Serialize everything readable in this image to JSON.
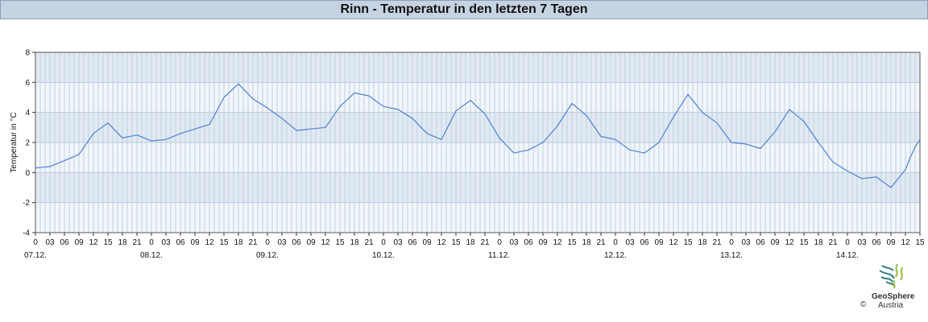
{
  "page": {
    "title": "Rinn - Temperatur in den letzten 7 Tagen"
  },
  "chart_data": {
    "type": "line",
    "title": "Rinn - Temperatur in den letzten 7 Tagen",
    "ylabel": "Temperatur in °C",
    "xlabel": "",
    "ylim": [
      -4,
      8
    ],
    "yticks": [
      -4,
      -2,
      0,
      2,
      4,
      6,
      8
    ],
    "xlim_hours": [
      0,
      183
    ],
    "hour_tick_labels": [
      "0",
      "03",
      "06",
      "09",
      "12",
      "15",
      "18",
      "21"
    ],
    "day_labels": [
      "07.12.",
      "08.12.",
      "09.12.",
      "10.12.",
      "11.12.",
      "12.12.",
      "13.12.",
      "14.12."
    ],
    "grid": true,
    "series": [
      {
        "color": "#4f7fd6",
        "x_hours": [
          0,
          3,
          6,
          9,
          12,
          15,
          18,
          21,
          24,
          27,
          30,
          33,
          36,
          39,
          42,
          45,
          48,
          51,
          54,
          57,
          60,
          63,
          66,
          69,
          72,
          75,
          78,
          81,
          84,
          87,
          90,
          93,
          96,
          99,
          102,
          105,
          108,
          111,
          114,
          117,
          120,
          123,
          126,
          129,
          132,
          135,
          138,
          141,
          144,
          147,
          150,
          153,
          156,
          159,
          162,
          165,
          168,
          171,
          174,
          177,
          180,
          181,
          182,
          183
        ],
        "values": [
          0.3,
          0.4,
          0.8,
          1.2,
          2.6,
          3.3,
          2.3,
          2.5,
          2.1,
          2.2,
          2.6,
          2.9,
          3.2,
          5.0,
          5.9,
          4.9,
          4.3,
          3.6,
          2.8,
          2.9,
          3.0,
          4.4,
          5.3,
          5.1,
          4.4,
          4.2,
          3.6,
          2.6,
          2.2,
          4.1,
          4.8,
          3.9,
          2.3,
          1.3,
          1.5,
          2.0,
          3.1,
          4.6,
          3.8,
          2.4,
          2.2,
          1.5,
          1.3,
          2.0,
          3.7,
          5.2,
          4.0,
          3.3,
          2.0,
          1.9,
          1.6,
          2.7,
          4.2,
          3.4,
          2.0,
          0.7,
          0.1,
          -0.4,
          -0.3,
          -1.0,
          0.2,
          1.0,
          1.7,
          2.2
        ]
      }
    ]
  },
  "logo": {
    "name": "GeoSphere",
    "sub": "Austria",
    "copyright": "©"
  }
}
